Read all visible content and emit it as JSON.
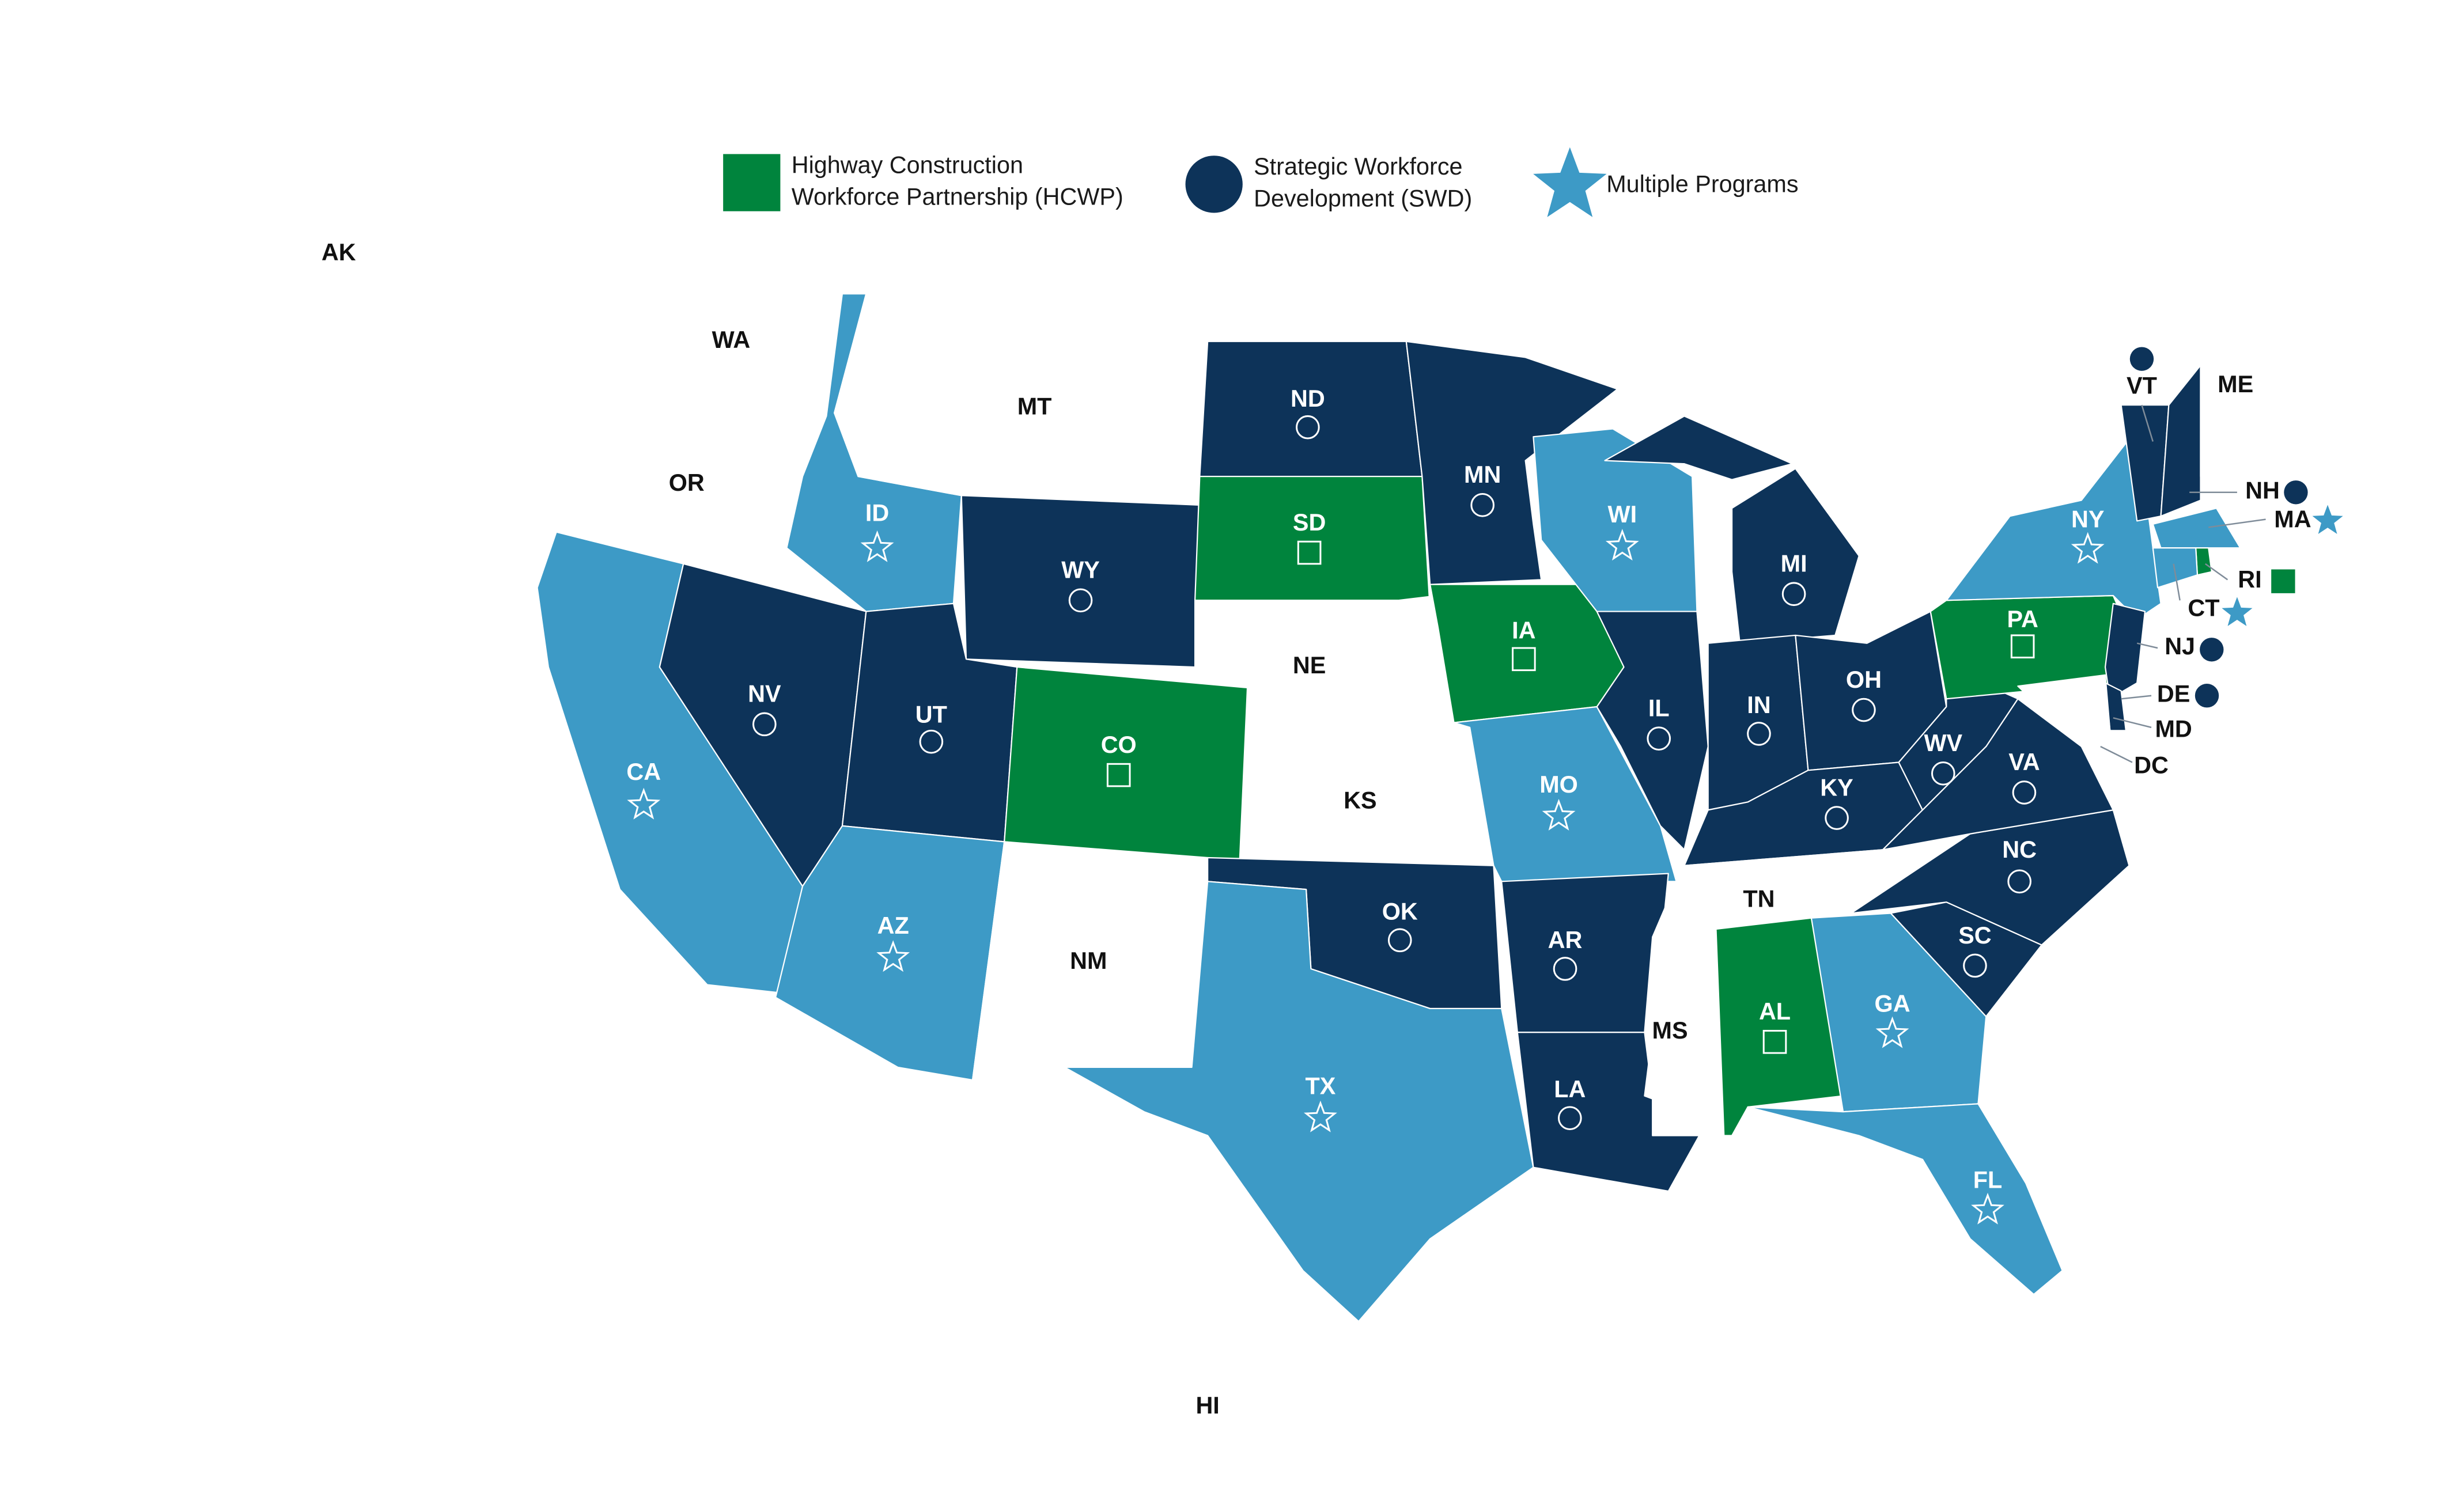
{
  "legend": [
    {
      "label": [
        "Highway Construction",
        "Workforce Partnership (HCWP)"
      ],
      "color": "#00843d",
      "symbol": "square"
    },
    {
      "label": [
        "Strategic Workforce",
        "Development (SWD)"
      ],
      "color": "#0d3359",
      "symbol": "circle"
    },
    {
      "label": [
        "Multiple Programs"
      ],
      "color": "#3d9ac6",
      "symbol": "star"
    }
  ],
  "states": [
    {
      "label": "AK",
      "color": "#ffffff"
    },
    {
      "label": "HI",
      "color": "#ffffff"
    },
    {
      "label": "WA",
      "color": "#ffffff"
    },
    {
      "label": "OR",
      "color": "#ffffff"
    },
    {
      "label": "CA",
      "color": "#3d9ac6",
      "symbol": "star"
    },
    {
      "label": "NV",
      "color": "#0d3359",
      "symbol": "circle"
    },
    {
      "label": "ID",
      "color": "#3d9ac6",
      "symbol": "star"
    },
    {
      "label": "MT",
      "color": "#ffffff"
    },
    {
      "label": "WY",
      "color": "#0d3359",
      "symbol": "circle"
    },
    {
      "label": "UT",
      "color": "#0d3359",
      "symbol": "circle"
    },
    {
      "label": "AZ",
      "color": "#3d9ac6",
      "symbol": "star"
    },
    {
      "label": "CO",
      "color": "#00843d",
      "symbol": "square"
    },
    {
      "label": "NM",
      "color": "#ffffff"
    },
    {
      "label": "ND",
      "color": "#0d3359",
      "symbol": "circle"
    },
    {
      "label": "SD",
      "color": "#00843d",
      "symbol": "square"
    },
    {
      "label": "NE",
      "color": "#ffffff"
    },
    {
      "label": "KS",
      "color": "#ffffff"
    },
    {
      "label": "OK",
      "color": "#0d3359",
      "symbol": "circle"
    },
    {
      "label": "TX",
      "color": "#3d9ac6",
      "symbol": "star"
    },
    {
      "label": "MN",
      "color": "#0d3359",
      "symbol": "circle"
    },
    {
      "label": "IA",
      "color": "#00843d",
      "symbol": "square"
    },
    {
      "label": "MO",
      "color": "#3d9ac6",
      "symbol": "star"
    },
    {
      "label": "AR",
      "color": "#0d3359",
      "symbol": "circle"
    },
    {
      "label": "LA",
      "color": "#0d3359",
      "symbol": "circle"
    },
    {
      "label": "WI",
      "color": "#3d9ac6",
      "symbol": "star"
    },
    {
      "label": "IL",
      "color": "#0d3359",
      "symbol": "circle"
    },
    {
      "label": "MI",
      "color": "#0d3359",
      "symbol": "circle"
    },
    {
      "label": "IN",
      "color": "#0d3359",
      "symbol": "circle"
    },
    {
      "label": "OH",
      "color": "#0d3359",
      "symbol": "circle"
    },
    {
      "label": "KY",
      "color": "#0d3359",
      "symbol": "circle"
    },
    {
      "label": "TN",
      "color": "#ffffff"
    },
    {
      "label": "MS",
      "color": "#ffffff"
    },
    {
      "label": "AL",
      "color": "#00843d",
      "symbol": "square"
    },
    {
      "label": "GA",
      "color": "#3d9ac6",
      "symbol": "star"
    },
    {
      "label": "FL",
      "color": "#3d9ac6",
      "symbol": "star"
    },
    {
      "label": "SC",
      "color": "#0d3359",
      "symbol": "circle"
    },
    {
      "label": "NC",
      "color": "#0d3359",
      "symbol": "circle"
    },
    {
      "label": "VA",
      "color": "#0d3359",
      "symbol": "circle"
    },
    {
      "label": "WV",
      "color": "#0d3359",
      "symbol": "circle"
    },
    {
      "label": "PA",
      "color": "#00843d",
      "symbol": "square"
    },
    {
      "label": "NY",
      "color": "#3d9ac6",
      "symbol": "star"
    },
    {
      "label": "VT",
      "color": "#0d3359",
      "symbol": "circle"
    },
    {
      "label": "NH",
      "color": "#0d3359",
      "symbol": "circle"
    },
    {
      "label": "ME",
      "color": "#ffffff"
    },
    {
      "label": "MA",
      "color": "#3d9ac6",
      "symbol": "star"
    },
    {
      "label": "RI",
      "color": "#00843d",
      "symbol": "square"
    },
    {
      "label": "CT",
      "color": "#3d9ac6",
      "symbol": "star"
    },
    {
      "label": "NJ",
      "color": "#0d3359",
      "symbol": "circle"
    },
    {
      "label": "DE",
      "color": "#0d3359",
      "symbol": "circle"
    },
    {
      "label": "MD",
      "color": "#ffffff"
    },
    {
      "label": "DC",
      "color": "#ffffff"
    }
  ]
}
